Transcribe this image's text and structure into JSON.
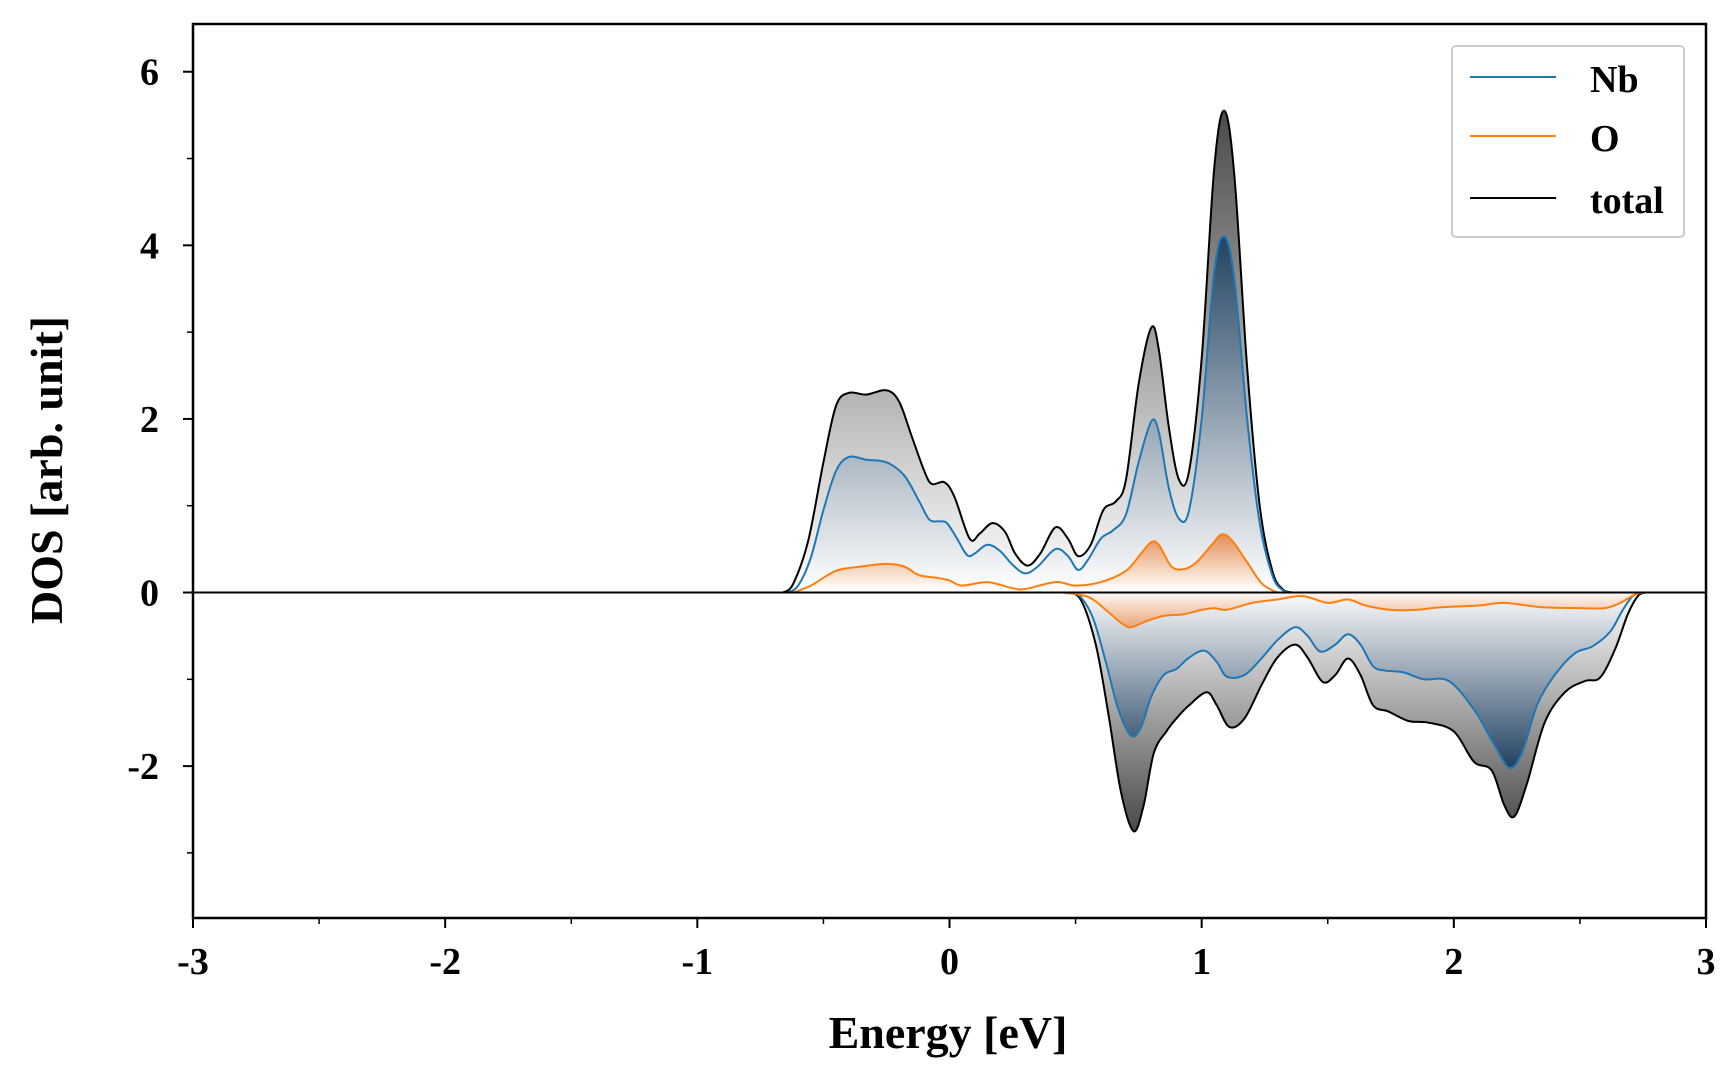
{
  "chart_data": {
    "type": "area",
    "title": "",
    "xlabel": "Energy [eV]",
    "ylabel": "DOS [arb. unit]",
    "xlim": [
      -3,
      3
    ],
    "ylim": [
      -3.75,
      6.55
    ],
    "xticks": [
      -3,
      -2,
      -1,
      0,
      1,
      2,
      3
    ],
    "xtick_labels": [
      "-3",
      "-2",
      "-1",
      "0",
      "1",
      "2",
      "3"
    ],
    "xminor_step": 0.5,
    "yticks": [
      -2,
      0,
      2,
      4,
      6
    ],
    "ytick_labels": [
      "-2",
      "0",
      "2",
      "4",
      "6"
    ],
    "yminor_step": 1,
    "grid": false,
    "legend_position": "top-right",
    "colors": {
      "Nb": "#1f77b4",
      "O": "#ff7f0e",
      "total": "#000000"
    },
    "series": [
      {
        "name": "Nb",
        "spin_up": [
          [
            -0.64,
            0.0
          ],
          [
            -0.6,
            0.08
          ],
          [
            -0.55,
            0.4
          ],
          [
            -0.5,
            0.95
          ],
          [
            -0.45,
            1.4
          ],
          [
            -0.4,
            1.56
          ],
          [
            -0.33,
            1.53
          ],
          [
            -0.25,
            1.5
          ],
          [
            -0.18,
            1.35
          ],
          [
            -0.12,
            1.05
          ],
          [
            -0.08,
            0.84
          ],
          [
            -0.04,
            0.82
          ],
          [
            -0.01,
            0.8
          ],
          [
            0.03,
            0.62
          ],
          [
            0.07,
            0.43
          ],
          [
            0.1,
            0.45
          ],
          [
            0.15,
            0.55
          ],
          [
            0.2,
            0.48
          ],
          [
            0.25,
            0.32
          ],
          [
            0.3,
            0.22
          ],
          [
            0.35,
            0.3
          ],
          [
            0.42,
            0.5
          ],
          [
            0.47,
            0.42
          ],
          [
            0.51,
            0.26
          ],
          [
            0.55,
            0.38
          ],
          [
            0.6,
            0.62
          ],
          [
            0.65,
            0.72
          ],
          [
            0.7,
            0.9
          ],
          [
            0.75,
            1.5
          ],
          [
            0.8,
            1.97
          ],
          [
            0.83,
            1.85
          ],
          [
            0.87,
            1.2
          ],
          [
            0.91,
            0.85
          ],
          [
            0.95,
            0.95
          ],
          [
            1.0,
            2.0
          ],
          [
            1.05,
            3.7
          ],
          [
            1.09,
            4.1
          ],
          [
            1.13,
            3.6
          ],
          [
            1.18,
            2.0
          ],
          [
            1.23,
            0.8
          ],
          [
            1.28,
            0.2
          ],
          [
            1.32,
            0.03
          ],
          [
            1.36,
            0.0
          ]
        ],
        "spin_down": [
          [
            0.48,
            0.0
          ],
          [
            0.52,
            -0.05
          ],
          [
            0.57,
            -0.3
          ],
          [
            0.62,
            -0.8
          ],
          [
            0.67,
            -1.35
          ],
          [
            0.72,
            -1.65
          ],
          [
            0.76,
            -1.55
          ],
          [
            0.8,
            -1.2
          ],
          [
            0.85,
            -0.95
          ],
          [
            0.9,
            -0.88
          ],
          [
            0.95,
            -0.75
          ],
          [
            1.01,
            -0.67
          ],
          [
            1.06,
            -0.8
          ],
          [
            1.1,
            -0.97
          ],
          [
            1.17,
            -0.95
          ],
          [
            1.24,
            -0.75
          ],
          [
            1.3,
            -0.55
          ],
          [
            1.37,
            -0.4
          ],
          [
            1.42,
            -0.5
          ],
          [
            1.47,
            -0.68
          ],
          [
            1.53,
            -0.6
          ],
          [
            1.58,
            -0.48
          ],
          [
            1.63,
            -0.6
          ],
          [
            1.68,
            -0.85
          ],
          [
            1.73,
            -0.9
          ],
          [
            1.8,
            -0.92
          ],
          [
            1.88,
            -1.0
          ],
          [
            1.98,
            -1.02
          ],
          [
            2.08,
            -1.35
          ],
          [
            2.16,
            -1.75
          ],
          [
            2.22,
            -2.02
          ],
          [
            2.27,
            -1.85
          ],
          [
            2.33,
            -1.3
          ],
          [
            2.4,
            -0.95
          ],
          [
            2.48,
            -0.7
          ],
          [
            2.55,
            -0.62
          ],
          [
            2.62,
            -0.45
          ],
          [
            2.67,
            -0.2
          ],
          [
            2.71,
            -0.04
          ],
          [
            2.75,
            0.0
          ]
        ]
      },
      {
        "name": "O",
        "spin_up": [
          [
            -0.62,
            0.0
          ],
          [
            -0.55,
            0.08
          ],
          [
            -0.45,
            0.25
          ],
          [
            -0.35,
            0.3
          ],
          [
            -0.25,
            0.33
          ],
          [
            -0.18,
            0.3
          ],
          [
            -0.12,
            0.2
          ],
          [
            -0.05,
            0.17
          ],
          [
            0.0,
            0.14
          ],
          [
            0.05,
            0.08
          ],
          [
            0.15,
            0.12
          ],
          [
            0.25,
            0.05
          ],
          [
            0.3,
            0.04
          ],
          [
            0.42,
            0.12
          ],
          [
            0.5,
            0.08
          ],
          [
            0.6,
            0.12
          ],
          [
            0.7,
            0.25
          ],
          [
            0.76,
            0.45
          ],
          [
            0.8,
            0.58
          ],
          [
            0.83,
            0.55
          ],
          [
            0.88,
            0.3
          ],
          [
            0.93,
            0.27
          ],
          [
            0.98,
            0.35
          ],
          [
            1.04,
            0.55
          ],
          [
            1.08,
            0.67
          ],
          [
            1.12,
            0.6
          ],
          [
            1.18,
            0.35
          ],
          [
            1.24,
            0.1
          ],
          [
            1.3,
            0.0
          ]
        ],
        "spin_down": [
          [
            0.45,
            0.0
          ],
          [
            0.55,
            -0.05
          ],
          [
            0.62,
            -0.2
          ],
          [
            0.68,
            -0.35
          ],
          [
            0.72,
            -0.4
          ],
          [
            0.78,
            -0.33
          ],
          [
            0.85,
            -0.27
          ],
          [
            0.93,
            -0.25
          ],
          [
            1.0,
            -0.2
          ],
          [
            1.05,
            -0.18
          ],
          [
            1.1,
            -0.2
          ],
          [
            1.2,
            -0.12
          ],
          [
            1.3,
            -0.08
          ],
          [
            1.4,
            -0.04
          ],
          [
            1.5,
            -0.12
          ],
          [
            1.58,
            -0.08
          ],
          [
            1.65,
            -0.15
          ],
          [
            1.75,
            -0.2
          ],
          [
            1.85,
            -0.2
          ],
          [
            1.95,
            -0.17
          ],
          [
            2.1,
            -0.15
          ],
          [
            2.2,
            -0.12
          ],
          [
            2.35,
            -0.17
          ],
          [
            2.5,
            -0.18
          ],
          [
            2.6,
            -0.18
          ],
          [
            2.66,
            -0.12
          ],
          [
            2.72,
            -0.02
          ],
          [
            2.76,
            0.0
          ]
        ]
      },
      {
        "name": "total",
        "spin_up": [
          [
            -0.66,
            0.0
          ],
          [
            -0.62,
            0.1
          ],
          [
            -0.56,
            0.6
          ],
          [
            -0.5,
            1.5
          ],
          [
            -0.45,
            2.15
          ],
          [
            -0.4,
            2.3
          ],
          [
            -0.33,
            2.28
          ],
          [
            -0.25,
            2.33
          ],
          [
            -0.2,
            2.2
          ],
          [
            -0.15,
            1.8
          ],
          [
            -0.1,
            1.4
          ],
          [
            -0.07,
            1.25
          ],
          [
            -0.02,
            1.27
          ],
          [
            0.02,
            1.1
          ],
          [
            0.08,
            0.62
          ],
          [
            0.12,
            0.68
          ],
          [
            0.17,
            0.8
          ],
          [
            0.22,
            0.7
          ],
          [
            0.26,
            0.45
          ],
          [
            0.31,
            0.31
          ],
          [
            0.36,
            0.45
          ],
          [
            0.42,
            0.75
          ],
          [
            0.47,
            0.62
          ],
          [
            0.51,
            0.42
          ],
          [
            0.56,
            0.55
          ],
          [
            0.61,
            0.95
          ],
          [
            0.66,
            1.05
          ],
          [
            0.7,
            1.3
          ],
          [
            0.75,
            2.4
          ],
          [
            0.8,
            3.05
          ],
          [
            0.83,
            2.8
          ],
          [
            0.87,
            1.9
          ],
          [
            0.91,
            1.3
          ],
          [
            0.95,
            1.4
          ],
          [
            1.0,
            2.7
          ],
          [
            1.05,
            4.9
          ],
          [
            1.09,
            5.55
          ],
          [
            1.13,
            4.8
          ],
          [
            1.18,
            2.6
          ],
          [
            1.23,
            1.0
          ],
          [
            1.28,
            0.25
          ],
          [
            1.32,
            0.04
          ],
          [
            1.36,
            0.0
          ]
        ],
        "spin_down": [
          [
            0.46,
            0.0
          ],
          [
            0.52,
            -0.08
          ],
          [
            0.58,
            -0.6
          ],
          [
            0.63,
            -1.4
          ],
          [
            0.68,
            -2.3
          ],
          [
            0.73,
            -2.75
          ],
          [
            0.77,
            -2.45
          ],
          [
            0.81,
            -1.85
          ],
          [
            0.86,
            -1.6
          ],
          [
            0.9,
            -1.45
          ],
          [
            0.95,
            -1.3
          ],
          [
            1.02,
            -1.15
          ],
          [
            1.06,
            -1.3
          ],
          [
            1.11,
            -1.55
          ],
          [
            1.17,
            -1.45
          ],
          [
            1.24,
            -1.05
          ],
          [
            1.3,
            -0.75
          ],
          [
            1.37,
            -0.6
          ],
          [
            1.42,
            -0.75
          ],
          [
            1.48,
            -1.03
          ],
          [
            1.53,
            -0.95
          ],
          [
            1.58,
            -0.76
          ],
          [
            1.63,
            -0.95
          ],
          [
            1.68,
            -1.3
          ],
          [
            1.74,
            -1.37
          ],
          [
            1.82,
            -1.48
          ],
          [
            1.9,
            -1.5
          ],
          [
            2.0,
            -1.6
          ],
          [
            2.08,
            -1.95
          ],
          [
            2.15,
            -2.05
          ],
          [
            2.2,
            -2.45
          ],
          [
            2.24,
            -2.58
          ],
          [
            2.29,
            -2.2
          ],
          [
            2.36,
            -1.5
          ],
          [
            2.44,
            -1.15
          ],
          [
            2.52,
            -1.02
          ],
          [
            2.58,
            -0.98
          ],
          [
            2.64,
            -0.65
          ],
          [
            2.69,
            -0.25
          ],
          [
            2.73,
            -0.04
          ],
          [
            2.76,
            0.0
          ]
        ]
      }
    ]
  }
}
